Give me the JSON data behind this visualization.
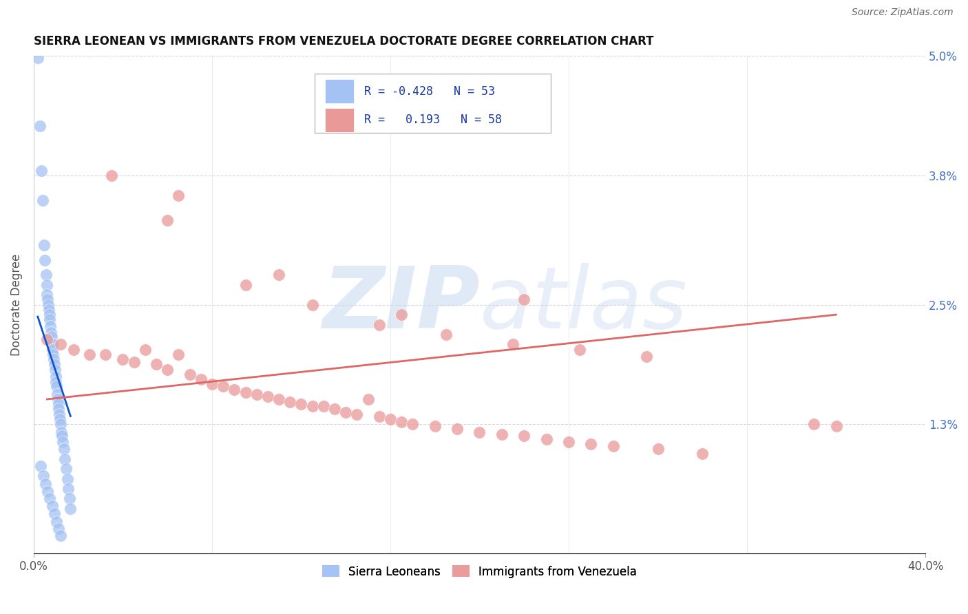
{
  "title": "SIERRA LEONEAN VS IMMIGRANTS FROM VENEZUELA DOCTORATE DEGREE CORRELATION CHART",
  "source": "Source: ZipAtlas.com",
  "ylabel": "Doctorate Degree",
  "xlim": [
    0.0,
    40.0
  ],
  "ylim": [
    0.0,
    5.0
  ],
  "watermark": "ZIPatlas",
  "blue_color": "#a4c2f4",
  "pink_color": "#ea9999",
  "blue_line_color": "#1155cc",
  "pink_line_color": "#e06666",
  "title_fontsize": 12,
  "label_fontsize": 12,
  "right_ytick_color": "#4472c4",
  "sierra_x": [
    0.18,
    0.28,
    0.35,
    0.4,
    0.45,
    0.5,
    0.55,
    0.58,
    0.6,
    0.62,
    0.65,
    0.68,
    0.7,
    0.72,
    0.75,
    0.78,
    0.8,
    0.82,
    0.85,
    0.88,
    0.9,
    0.92,
    0.95,
    0.98,
    1.0,
    1.02,
    1.05,
    1.08,
    1.1,
    1.12,
    1.15,
    1.18,
    1.2,
    1.25,
    1.28,
    1.3,
    1.35,
    1.4,
    1.45,
    1.5,
    1.55,
    1.6,
    1.65,
    0.3,
    0.42,
    0.52,
    0.62,
    0.72,
    0.82,
    0.92,
    1.02,
    1.12,
    1.22
  ],
  "sierra_y": [
    4.98,
    4.3,
    3.85,
    3.55,
    3.1,
    2.95,
    2.8,
    2.7,
    2.6,
    2.55,
    2.5,
    2.45,
    2.4,
    2.35,
    2.28,
    2.22,
    2.18,
    2.1,
    2.05,
    2.0,
    1.95,
    1.9,
    1.85,
    1.78,
    1.72,
    1.68,
    1.6,
    1.55,
    1.5,
    1.45,
    1.4,
    1.35,
    1.3,
    1.22,
    1.18,
    1.12,
    1.05,
    0.95,
    0.85,
    0.75,
    0.65,
    0.55,
    0.45,
    0.88,
    0.78,
    0.7,
    0.62,
    0.55,
    0.48,
    0.4,
    0.32,
    0.25,
    0.18
  ],
  "venezuela_x": [
    0.6,
    1.2,
    1.8,
    2.5,
    3.2,
    4.0,
    4.5,
    5.0,
    5.5,
    6.0,
    6.5,
    7.0,
    7.5,
    8.0,
    8.5,
    9.0,
    9.5,
    10.0,
    10.5,
    11.0,
    11.5,
    12.0,
    12.5,
    13.0,
    13.5,
    14.0,
    14.5,
    15.0,
    15.5,
    16.0,
    16.5,
    17.0,
    18.0,
    19.0,
    20.0,
    21.0,
    22.0,
    23.0,
    24.0,
    25.0,
    26.0,
    28.0,
    30.0,
    35.0,
    36.0,
    3.5,
    6.5,
    9.5,
    12.5,
    15.5,
    18.5,
    21.5,
    24.5,
    27.5,
    6.0,
    11.0,
    16.5,
    22.0
  ],
  "venezuela_y": [
    2.15,
    2.1,
    2.05,
    2.0,
    2.0,
    1.95,
    1.92,
    2.05,
    1.9,
    1.85,
    2.0,
    1.8,
    1.75,
    1.7,
    1.68,
    1.65,
    1.62,
    1.6,
    1.58,
    1.55,
    1.52,
    1.5,
    1.48,
    1.48,
    1.45,
    1.42,
    1.4,
    1.55,
    1.38,
    1.35,
    1.32,
    1.3,
    1.28,
    1.25,
    1.22,
    1.2,
    1.18,
    1.15,
    1.12,
    1.1,
    1.08,
    1.05,
    1.0,
    1.3,
    1.28,
    3.8,
    3.6,
    2.7,
    2.5,
    2.3,
    2.2,
    2.1,
    2.05,
    1.98,
    3.35,
    2.8,
    2.4,
    2.55
  ],
  "blue_line_x": [
    0.18,
    1.65
  ],
  "blue_line_y": [
    2.38,
    1.38
  ],
  "pink_line_x": [
    0.6,
    36.0
  ],
  "pink_line_y": [
    1.55,
    2.4
  ]
}
